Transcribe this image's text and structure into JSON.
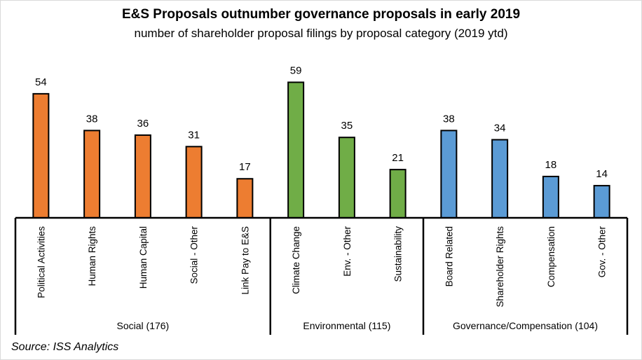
{
  "chart_data": {
    "type": "bar",
    "title": "E&S Proposals outnumber governance proposals in early 2019",
    "subtitle": "number of shareholder proposal filings by proposal category (2019 ytd)",
    "xlabel": "",
    "ylabel": "",
    "ylim": [
      0,
      60
    ],
    "grid": false,
    "data_labels": true,
    "categories": [
      "Political Activities",
      "Human Rights",
      "Human Capital",
      "Social - Other",
      "Link Pay to E&S",
      "Climate Change",
      "Env. - Other",
      "Sustainability",
      "Board Related",
      "Shareholder Rights",
      "Compensation",
      "Gov. - Other"
    ],
    "values": [
      54,
      38,
      36,
      31,
      17,
      59,
      35,
      21,
      38,
      34,
      18,
      14
    ],
    "groups": [
      {
        "label": "Social (176)",
        "count": 5,
        "color": "#ED7D31"
      },
      {
        "label": "Environmental (115)",
        "count": 3,
        "color": "#70AD47"
      },
      {
        "label": "Governance/Compensation (104)",
        "count": 4,
        "color": "#5B9BD5"
      }
    ],
    "source": "Source: ISS Analytics"
  }
}
